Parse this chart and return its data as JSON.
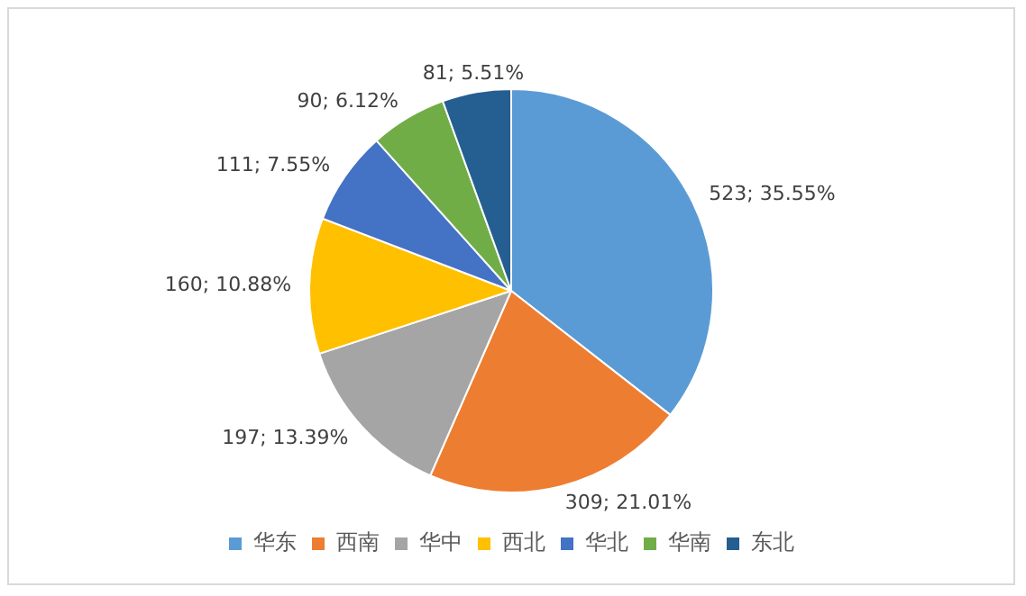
{
  "chart_data": {
    "type": "pie",
    "categories": [
      "华东",
      "西南",
      "华中",
      "西北",
      "华北",
      "华南",
      "东北"
    ],
    "values": [
      523,
      309,
      197,
      160,
      111,
      90,
      81
    ],
    "colors": [
      "#5b9bd5",
      "#ed7d31",
      "#a5a5a5",
      "#ffc000",
      "#4472c4",
      "#70ad47",
      "#255e91"
    ],
    "value_labels": [
      "523; 35.55%",
      "309; 21.01%",
      "197; 13.39%",
      "160; 10.88%",
      "111; 7.55%",
      "90; 6.12%",
      "81; 5.51%"
    ],
    "legend": "bottom"
  }
}
